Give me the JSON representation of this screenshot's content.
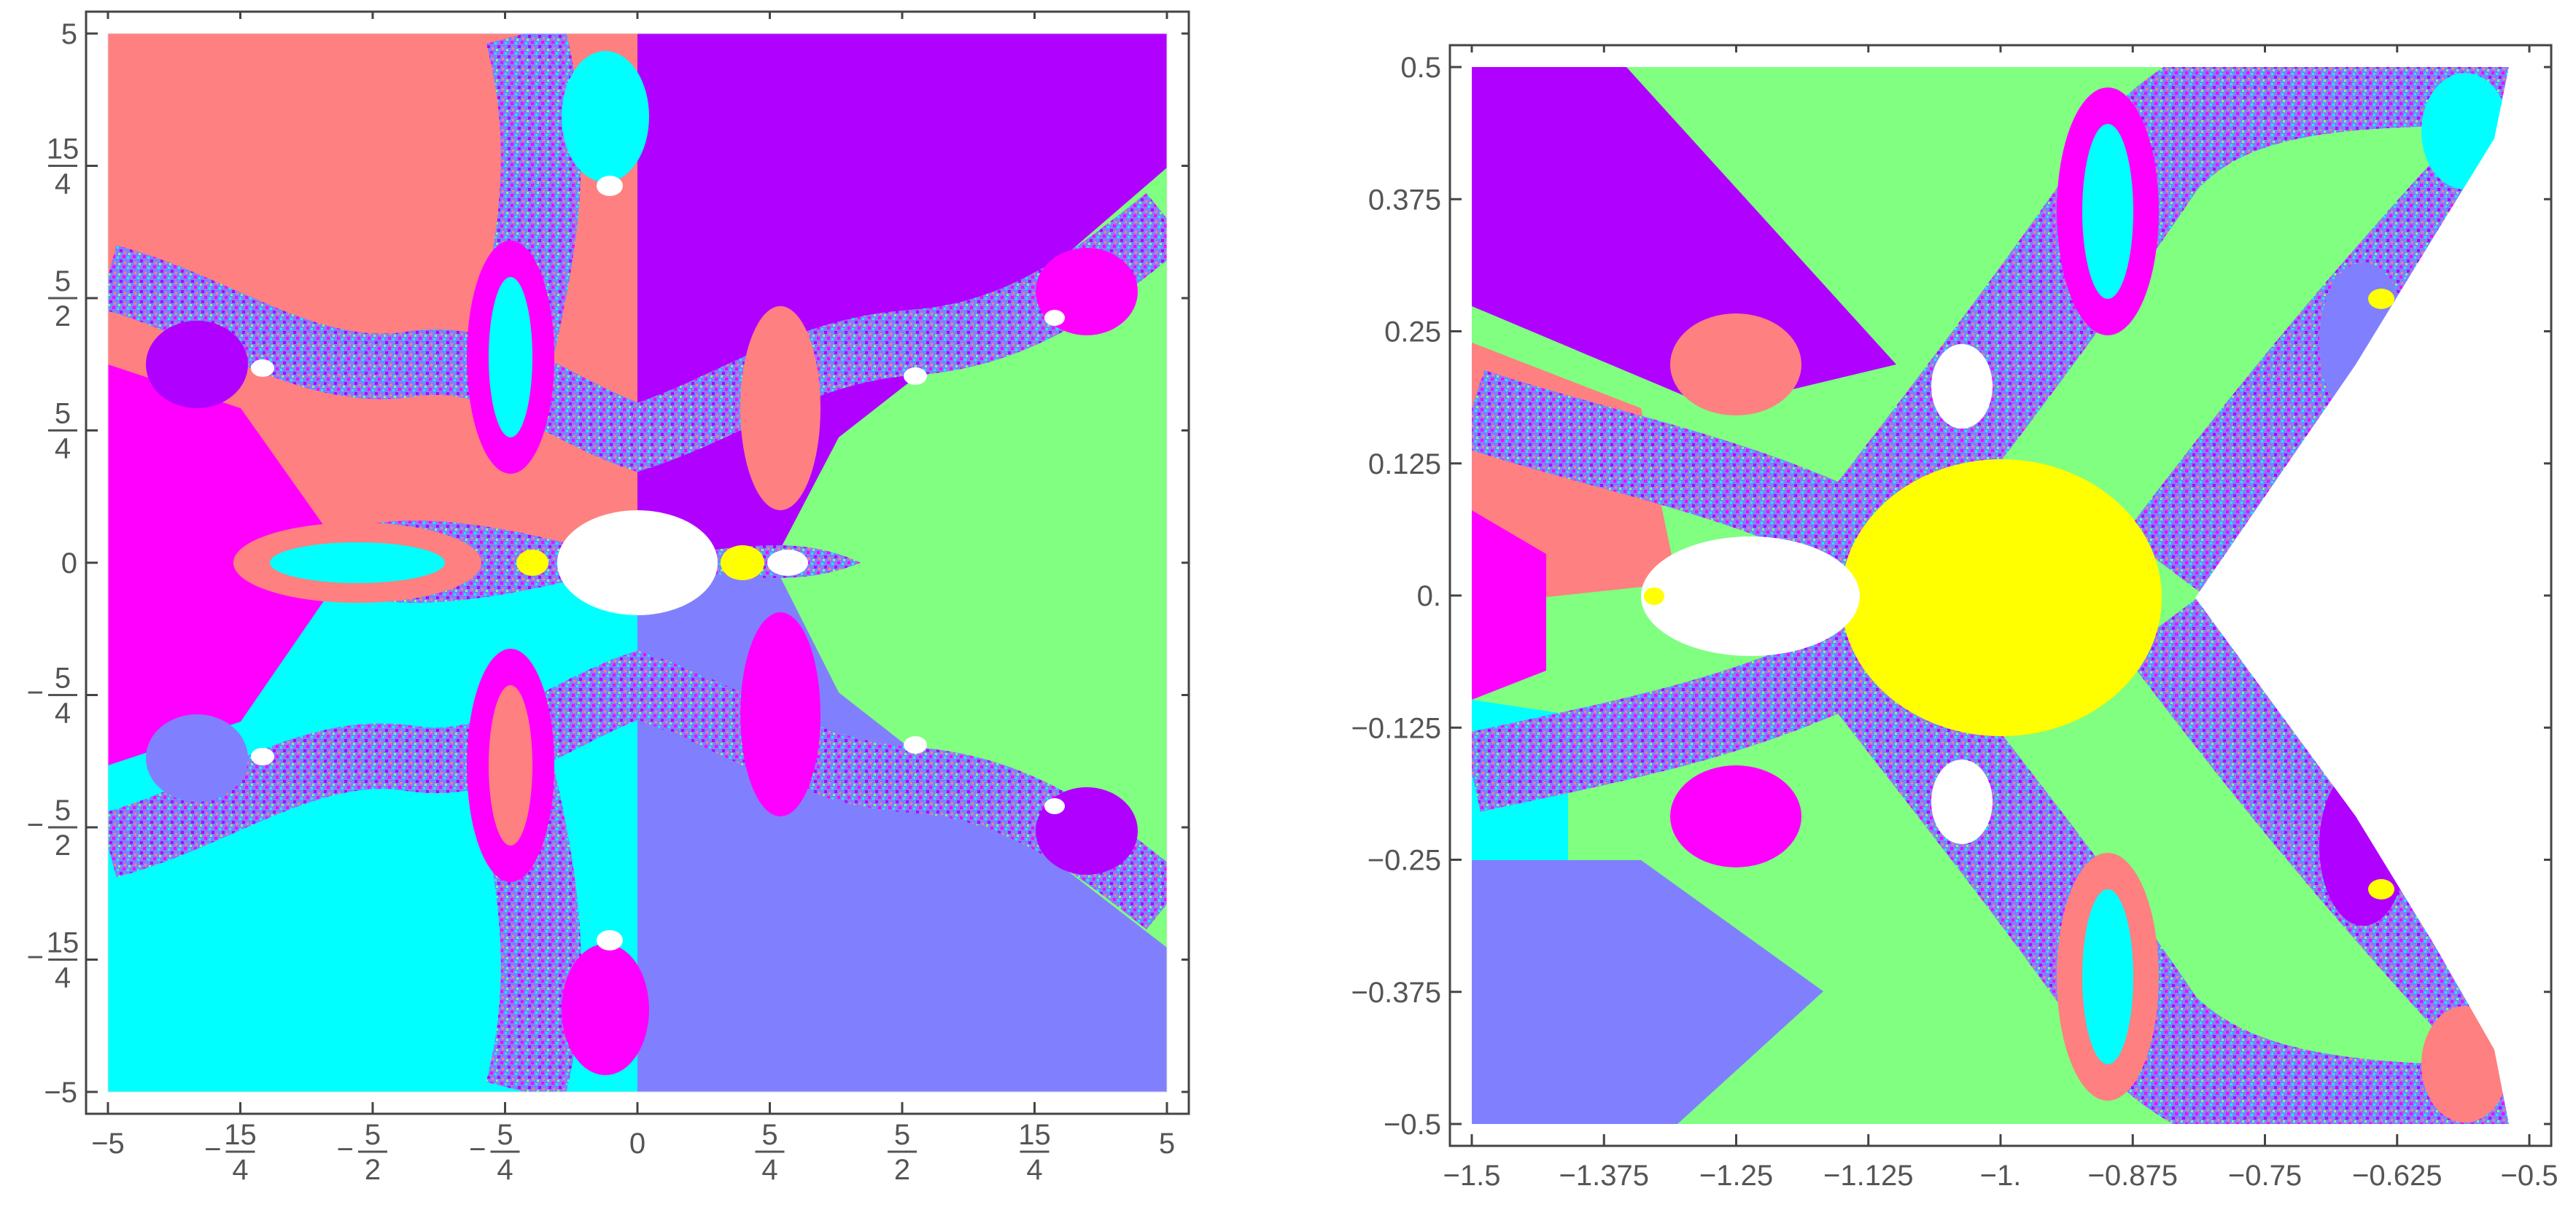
{
  "chart_data": [
    {
      "type": "heatmap",
      "title": "",
      "xlabel": "",
      "ylabel": "",
      "xlim": [
        -5,
        5
      ],
      "ylim": [
        -5,
        5
      ],
      "grid": false,
      "x_ticks": [
        {
          "v": -5,
          "label": "−5"
        },
        {
          "v": -3.75,
          "label": "−15/4"
        },
        {
          "v": -2.5,
          "label": "−5/2"
        },
        {
          "v": -1.25,
          "label": "−5/4"
        },
        {
          "v": 0,
          "label": "0"
        },
        {
          "v": 1.25,
          "label": "5/4"
        },
        {
          "v": 2.5,
          "label": "5/2"
        },
        {
          "v": 3.75,
          "label": "15/4"
        },
        {
          "v": 5,
          "label": "5"
        }
      ],
      "y_ticks": [
        {
          "v": 5,
          "label": "5"
        },
        {
          "v": 3.75,
          "label": "15/4"
        },
        {
          "v": 2.5,
          "label": "5/2"
        },
        {
          "v": 1.25,
          "label": "5/4"
        },
        {
          "v": 0,
          "label": "0"
        },
        {
          "v": -1.25,
          "label": "−5/4"
        },
        {
          "v": -2.5,
          "label": "−5/2"
        },
        {
          "v": -3.75,
          "label": "−15/4"
        },
        {
          "v": -5,
          "label": "−5"
        }
      ],
      "basins": [
        {
          "region": "top-left",
          "color": "#FF8080"
        },
        {
          "region": "top-right",
          "color": "#B000FF"
        },
        {
          "region": "left",
          "color": "#FF00FF"
        },
        {
          "region": "right",
          "color": "#80FF80"
        },
        {
          "region": "bottom-left",
          "color": "#00FFFF"
        },
        {
          "region": "bottom-right",
          "color": "#8080FF"
        },
        {
          "region": "center",
          "color": "#FFFFFF"
        },
        {
          "region": "center-right",
          "color": "#FFFF00"
        }
      ]
    },
    {
      "type": "heatmap",
      "title": "",
      "xlabel": "",
      "ylabel": "",
      "xlim": [
        -1.5,
        -0.5
      ],
      "ylim": [
        -0.5,
        0.5
      ],
      "grid": false,
      "x_ticks": [
        {
          "v": -1.5,
          "label": "−1.5"
        },
        {
          "v": -1.375,
          "label": "−1.375"
        },
        {
          "v": -1.25,
          "label": "−1.25"
        },
        {
          "v": -1.125,
          "label": "−1.125"
        },
        {
          "v": -1.0,
          "label": "−1."
        },
        {
          "v": -0.875,
          "label": "−0.875"
        },
        {
          "v": -0.75,
          "label": "−0.75"
        },
        {
          "v": -0.625,
          "label": "−0.625"
        },
        {
          "v": -0.5,
          "label": "−0.5"
        }
      ],
      "y_ticks": [
        {
          "v": 0.5,
          "label": "0.5"
        },
        {
          "v": 0.375,
          "label": "0.375"
        },
        {
          "v": 0.25,
          "label": "0.25"
        },
        {
          "v": 0.125,
          "label": "0.125"
        },
        {
          "v": 0.0,
          "label": "0."
        },
        {
          "v": -0.125,
          "label": "−0.125"
        },
        {
          "v": -0.25,
          "label": "−0.25"
        },
        {
          "v": -0.375,
          "label": "−0.375"
        },
        {
          "v": -0.5,
          "label": "−0.5"
        }
      ],
      "basins": [
        {
          "region": "top-left",
          "color": "#B000FF"
        },
        {
          "region": "top",
          "color": "#80FF80"
        },
        {
          "region": "left",
          "color": "#FF8080"
        },
        {
          "region": "bottom-left",
          "color": "#8080FF"
        },
        {
          "region": "bottom",
          "color": "#80FF80"
        },
        {
          "region": "center",
          "color": "#FFFF00"
        },
        {
          "region": "center-left",
          "color": "#FFFFFF"
        }
      ]
    }
  ]
}
